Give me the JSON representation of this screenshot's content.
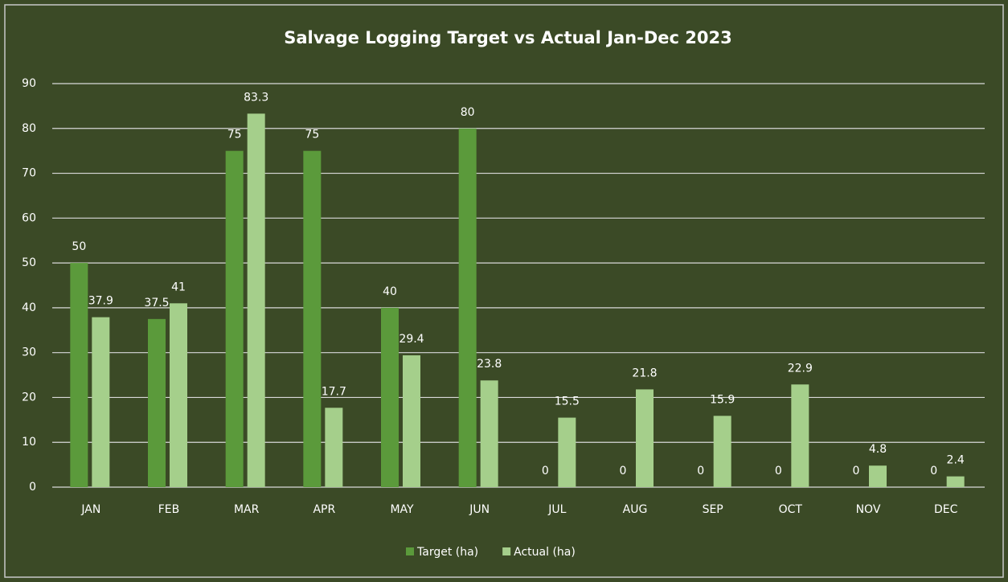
{
  "chart_data": {
    "type": "bar",
    "title": "Salvage Logging Target vs Actual Jan-Dec 2023",
    "categories": [
      "JAN",
      "FEB",
      "MAR",
      "APR",
      "MAY",
      "JUN",
      "JUL",
      "AUG",
      "SEP",
      "OCT",
      "NOV",
      "DEC"
    ],
    "series": [
      {
        "name": "Target (ha)",
        "color": "#5b9a3b",
        "values": [
          50,
          37.5,
          75,
          75,
          40,
          80,
          0,
          0,
          0,
          0,
          0,
          0
        ]
      },
      {
        "name": "Actual (ha)",
        "color": "#a5cf8b",
        "values": [
          37.9,
          41,
          83.3,
          17.7,
          29.4,
          23.8,
          15.5,
          21.8,
          15.9,
          22.9,
          4.8,
          2.4
        ]
      }
    ],
    "ylim": [
      0,
      90
    ],
    "yticks": [
      0,
      10,
      20,
      30,
      40,
      50,
      60,
      70,
      80,
      90
    ],
    "grid": true,
    "legend": "bottom"
  }
}
